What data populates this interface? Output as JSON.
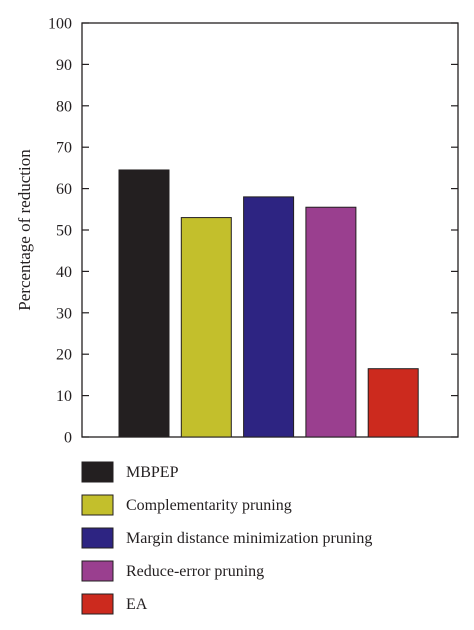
{
  "chart_data": {
    "type": "bar",
    "categories": [
      "MBPEP",
      "Complementarity pruning",
      "Margin distance minimization pruning",
      "Reduce-error pruning",
      "EA"
    ],
    "values": [
      64.5,
      53.0,
      58.0,
      55.5,
      16.5
    ],
    "colors": [
      "#231f20",
      "#c3bf2c",
      "#2d2482",
      "#9a3f8f",
      "#cc2a1e"
    ],
    "title": "",
    "xlabel": "",
    "ylabel": "Percentage of reduction",
    "ylim": [
      0,
      100
    ],
    "yticks": [
      "0",
      "10",
      "20",
      "30",
      "40",
      "50",
      "60",
      "70",
      "80",
      "90",
      "100"
    ],
    "grid": false,
    "legend_position": "bottom"
  }
}
